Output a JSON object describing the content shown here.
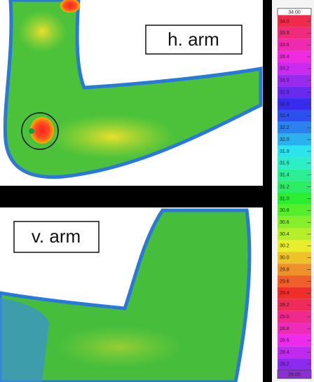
{
  "panels": [
    {
      "label": "h. arm"
    },
    {
      "label": "v. arm"
    }
  ],
  "scale": {
    "max": "34.00",
    "labels": [
      "34.0",
      "33.8",
      "33.6",
      "33.4",
      "33.2",
      "33.0",
      "32.8",
      "32.6",
      "32.4",
      "32.2",
      "32.0",
      "31.8",
      "31.6",
      "31.4",
      "31.2",
      "31.0",
      "30.8",
      "30.6",
      "30.4",
      "30.2",
      "30.0",
      "29.8",
      "29.6",
      "29.4",
      "29.2",
      "29.0",
      "28.8",
      "28.6",
      "28.4",
      "28.2"
    ],
    "min": "28.00"
  }
}
